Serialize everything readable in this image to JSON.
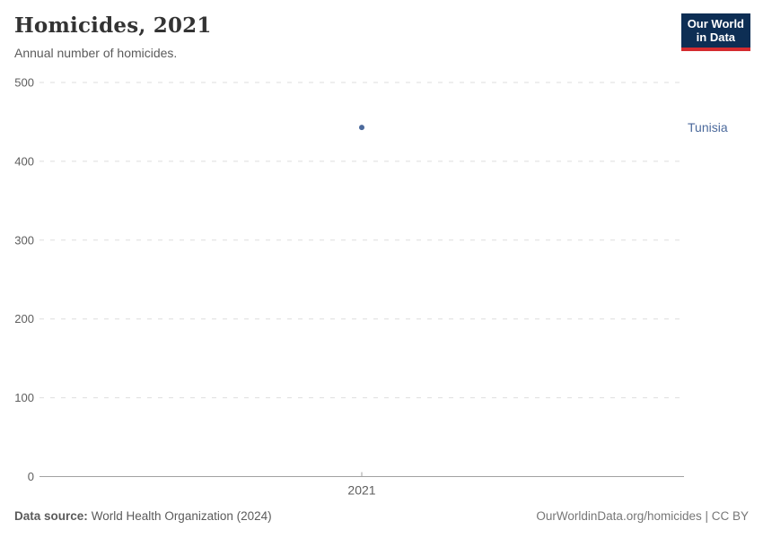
{
  "header": {
    "title": "Homicides, 2021",
    "subtitle": "Annual number of homicides."
  },
  "logo": {
    "line1": "Our World",
    "line2": "in Data",
    "bg_color": "#0d2e54",
    "accent_color": "#d42b2f"
  },
  "chart_data": {
    "type": "scatter",
    "title": "Homicides, 2021",
    "subtitle": "Annual number of homicides.",
    "x": [
      2021
    ],
    "xtick_labels": [
      "2021"
    ],
    "xlabel": "",
    "ylabel": "",
    "ylim": [
      0,
      500
    ],
    "yticks": [
      0,
      100,
      200,
      300,
      400,
      500
    ],
    "grid": "dashed-horizontal",
    "legend_position": "right-entity-label",
    "series": [
      {
        "name": "Tunisia",
        "values": [
          443
        ],
        "color": "#4c6a9c"
      }
    ]
  },
  "footer": {
    "source_label": "Data source:",
    "source_value": "World Health Organization (2024)",
    "credit": "OurWorldinData.org/homicides | CC BY"
  },
  "colors": {
    "gridline": "#dedede",
    "axis": "#a1a1a1",
    "tick_text": "#5e5e5e",
    "entity": "#4c6a9c"
  }
}
